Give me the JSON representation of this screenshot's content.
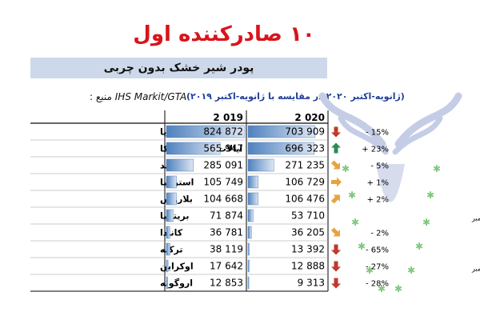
{
  "title": "۱۰ صادرکننده اول",
  "subtitle": "پودر شیر خشک بدون چربی",
  "source_label": "منبع :",
  "source_name": "IHS Markit/GTA",
  "period_text": "(ژانویه-اکتبر ۲۰۲۰ در مقایسه با ژانویه-اکتبر ۲۰۱۹)",
  "chart_data": {
    "type": "table",
    "title": "۱۰ صادرکننده اول",
    "subtitle": "پودر شیر خشک بدون چربی",
    "column_headers": [
      "2 019",
      "2 020"
    ],
    "max_value": 824872,
    "rows": [
      {
        "country": "اتحادیه اروپا",
        "v2019": 824872,
        "v2020": 703909,
        "label2019": "824 872",
        "label2020": "703 909",
        "trend": "down",
        "change": "- 15%",
        "note": ""
      },
      {
        "country": "ایالات متحده آمریکا",
        "v2019": 565947,
        "v2020": 696323,
        "label2019": "565 947",
        "label2020": "696 323",
        "trend": "up",
        "change": "+ 23%",
        "note": ""
      },
      {
        "country": "نیوزلند",
        "v2019": 285091,
        "v2020": 271235,
        "label2019": "285 091",
        "label2020": "271 235",
        "trend": "down-right",
        "change": "- 5%",
        "note": ""
      },
      {
        "country": "استرالیا",
        "v2019": 105749,
        "v2020": 106729,
        "label2019": "105 749",
        "label2020": "106 729",
        "trend": "right",
        "change": "+ 1%",
        "note": ""
      },
      {
        "country": "بلاروس",
        "v2019": 104668,
        "v2020": 106476,
        "label2019": "104 668",
        "label2020": "106 476",
        "trend": "up-right",
        "change": "+ 2%",
        "note": ""
      },
      {
        "country": "بریتانیا",
        "v2019": 71874,
        "v2020": 53710,
        "label2019": "71 874",
        "label2020": "53 710",
        "trend": "",
        "change": "",
        "note": "تا انتهای سپتامبر"
      },
      {
        "country": "کانادا",
        "v2019": 36781,
        "v2020": 36205,
        "label2019": "36 781",
        "label2020": "36 205",
        "trend": "down-right",
        "change": "- 2%",
        "note": ""
      },
      {
        "country": "ترکیه",
        "v2019": 38119,
        "v2020": 13392,
        "label2019": "38 119",
        "label2020": "13 392",
        "trend": "down",
        "change": "- 65%",
        "note": ""
      },
      {
        "country": "اوکراین",
        "v2019": 17642,
        "v2020": 12888,
        "label2019": "17 642",
        "label2020": "12 888",
        "trend": "down",
        "change": "- 27%",
        "note": "تا انتهای سپتامبر"
      },
      {
        "country": "اروگوئه",
        "v2019": 12853,
        "v2020": 9313,
        "label2019": "12 853",
        "label2020": "9 313",
        "trend": "down",
        "change": "- 28%",
        "note": ""
      }
    ]
  },
  "colors": {
    "title_red": "#d9141b",
    "subtitle_bg": "#cdd9ea",
    "period_blue": "#1f3f99",
    "bar_blue": "#4f81bd",
    "arrow_red": "#c0392b",
    "arrow_green": "#2e8b57",
    "arrow_orange": "#e8a33d",
    "logo_blue": "#c5cde6",
    "logo_green": "#7dc87d"
  }
}
